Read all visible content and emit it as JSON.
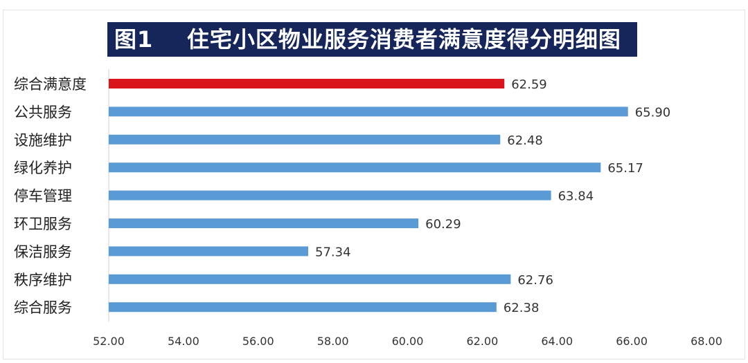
{
  "chart_data": {
    "type": "bar",
    "orientation": "horizontal",
    "title": "图1    住宅小区物业服务消费者满意度得分明细图",
    "categories": [
      "综合满意度",
      "公共服务",
      "设施维护",
      "绿化养护",
      "停车管理",
      "环卫服务",
      "保洁服务",
      "秩序维护",
      "综合服务"
    ],
    "values": [
      62.59,
      65.9,
      62.48,
      65.17,
      63.84,
      60.29,
      57.34,
      62.76,
      62.38
    ],
    "value_labels": [
      "62.59",
      "65.90",
      "62.48",
      "65.17",
      "63.84",
      "60.29",
      "57.34",
      "62.76",
      "62.38"
    ],
    "xlim": [
      52,
      68
    ],
    "xticks": [
      "52.00",
      "54.00",
      "56.00",
      "58.00",
      "60.00",
      "62.00",
      "64.00",
      "66.00",
      "68.00"
    ],
    "grid": false,
    "colors": {
      "highlight": "#d9141b",
      "bar": "#5b9bd5",
      "title_bg": "#16265a"
    }
  }
}
